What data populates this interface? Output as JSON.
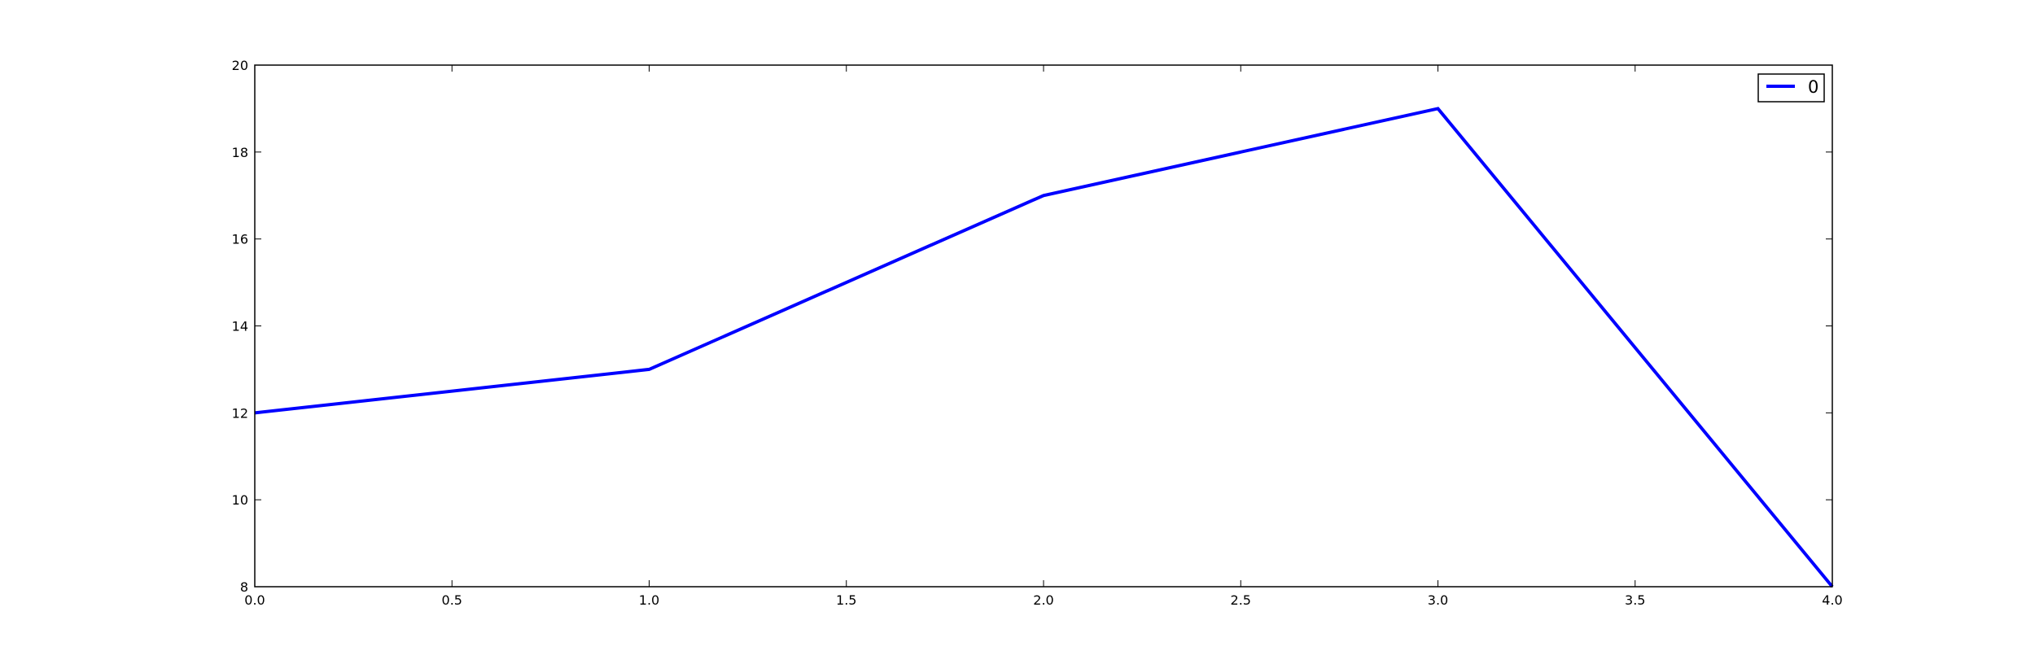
{
  "chart_data": {
    "type": "line",
    "title": "",
    "xlabel": "",
    "ylabel": "",
    "xlim": [
      0,
      4
    ],
    "ylim": [
      8,
      20
    ],
    "x_ticks": [
      "0.0",
      "0.5",
      "1.0",
      "1.5",
      "2.0",
      "2.5",
      "3.0",
      "3.5",
      "4.0"
    ],
    "y_ticks": [
      "8",
      "10",
      "12",
      "14",
      "16",
      "18",
      "20"
    ],
    "grid": false,
    "legend_position": "top-right",
    "series": [
      {
        "name": "0",
        "color": "#0000ff",
        "x": [
          0,
          1,
          2,
          3,
          4
        ],
        "y": [
          12,
          13,
          17,
          19,
          8
        ]
      }
    ]
  }
}
